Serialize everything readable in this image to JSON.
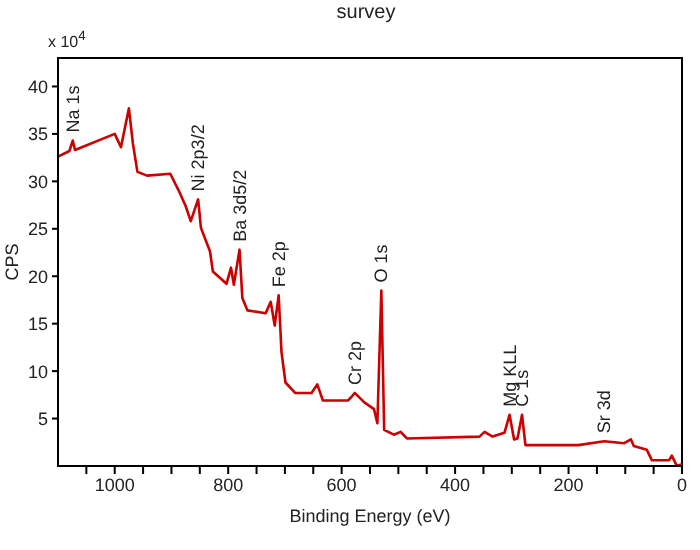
{
  "chart_data": {
    "type": "line",
    "title": "survey",
    "xlabel": "Binding Energy (eV)",
    "ylabel": "CPS",
    "annotations": [
      "x 10$^{4}$",
      {
        "text": "Na 1s",
        "x": 1074,
        "y": 34.3
      },
      {
        "text": "Ni 2p3/2",
        "x": 853,
        "y": 28.1
      },
      {
        "text": "Ba 3d5/2",
        "x": 780,
        "y": 22.8
      },
      {
        "text": "Fe 2p",
        "x": 711,
        "y": 18
      },
      {
        "text": "Cr 2p",
        "x": 577,
        "y": 7.7
      },
      {
        "text": "O 1s",
        "x": 530,
        "y": 18.5
      },
      {
        "text": "Mg KLL",
        "x": 304,
        "y": 5.4
      },
      {
        "text": "C 1s",
        "x": 282,
        "y": 5.4
      },
      {
        "text": "Sr 3d",
        "x": 137,
        "y": 2.6
      }
    ],
    "x": [
      1100,
      1080,
      1074,
      1070,
      1000,
      989,
      975,
      968,
      960,
      943,
      902,
      887,
      875,
      866,
      853,
      848,
      832,
      827,
      803,
      795,
      790,
      780,
      775,
      766,
      734,
      725,
      718,
      711,
      706,
      699,
      682,
      653,
      643,
      633,
      589,
      581,
      577,
      560,
      543,
      537,
      530,
      525,
      508,
      496,
      485,
      357,
      348,
      334,
      313,
      304,
      296,
      290,
      282,
      276,
      183,
      137,
      102,
      90,
      85,
      62,
      53,
      23,
      18,
      9,
      0
    ],
    "series": [
      {
        "color": "#cc0000",
        "values": [
          32.6,
          33.2,
          34.3,
          33.3,
          35,
          33.6,
          37.7,
          34,
          31,
          30.6,
          30.8,
          29,
          27.4,
          25.8,
          28.1,
          25.1,
          22.6,
          20.5,
          19.2,
          20.9,
          19.1,
          22.8,
          17.7,
          16.4,
          16.1,
          17.3,
          14.8,
          18,
          12,
          8.8,
          7.7,
          7.7,
          8.6,
          6.9,
          6.9,
          7.4,
          7.7,
          6.7,
          6,
          4.5,
          18.5,
          3.8,
          3.3,
          3.6,
          2.9,
          3.1,
          3.6,
          3.1,
          3.5,
          5.4,
          2.8,
          2.9,
          5.4,
          2.2,
          2.2,
          2.6,
          2.4,
          2.8,
          2.1,
          1.7,
          0.6,
          0.6,
          1.1,
          0,
          0.2
        ]
      }
    ],
    "xlim": [
      1100,
      0
    ],
    "xticks": [
      {
        "value": 1050,
        "label": null
      },
      1000,
      {
        "value": 950,
        "label": null
      },
      {
        "value": 900,
        "label": null
      },
      {
        "value": 850,
        "label": null
      },
      800,
      {
        "value": 750,
        "label": null
      },
      {
        "value": 700,
        "label": null
      },
      {
        "value": 650,
        "label": null
      },
      600,
      {
        "value": 550,
        "label": null
      },
      {
        "value": 500,
        "label": null
      },
      {
        "value": 450,
        "label": null
      },
      400,
      {
        "value": 350,
        "label": null
      },
      {
        "value": 300,
        "label": null
      },
      {
        "value": 250,
        "label": null
      },
      200,
      {
        "value": 150,
        "label": null
      },
      {
        "value": 100,
        "label": null
      },
      {
        "value": 50,
        "label": null
      },
      0
    ],
    "ylim": [
      0,
      43
    ],
    "yticks": [
      5,
      10,
      15,
      20,
      25,
      30,
      35,
      40
    ],
    "grid": false,
    "legend": false,
    "marker": "none",
    "line_style": "solid"
  }
}
